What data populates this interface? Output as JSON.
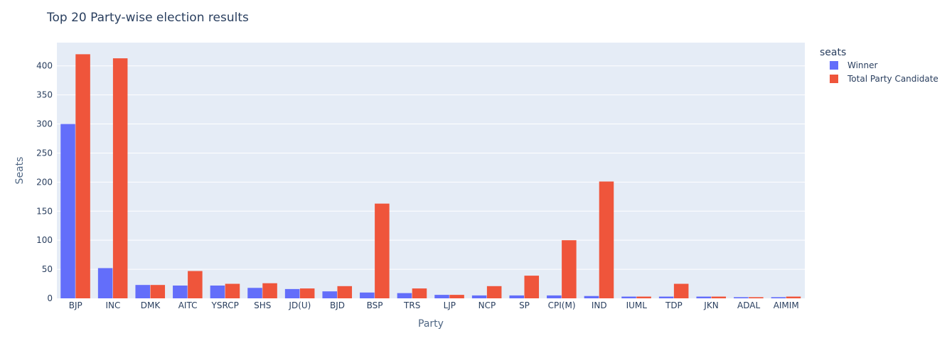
{
  "chart_data": {
    "type": "bar",
    "title": "Top 20 Party-wise election results",
    "xlabel": "Party",
    "ylabel": "Seats",
    "ylim": [
      0,
      440
    ],
    "yticks": [
      0,
      50,
      100,
      150,
      200,
      250,
      300,
      350,
      400
    ],
    "grid": true,
    "legend_title": "seats",
    "legend_position": "top-right",
    "categories": [
      "BJP",
      "INC",
      "DMK",
      "AITC",
      "YSRCP",
      "SHS",
      "JD(U)",
      "BJD",
      "BSP",
      "TRS",
      "LJP",
      "NCP",
      "SP",
      "CPI(M)",
      "IND",
      "IUML",
      "TDP",
      "JKN",
      "ADAL",
      "AIMIM"
    ],
    "series": [
      {
        "name": "Winner",
        "color": "#636efa",
        "values": [
          300,
          52,
          23,
          22,
          22,
          18,
          16,
          12,
          10,
          9,
          6,
          5,
          5,
          5,
          4,
          3,
          3,
          3,
          2,
          2
        ]
      },
      {
        "name": "Total Party Candidate",
        "color": "#ef553b",
        "values": [
          420,
          413,
          23,
          47,
          25,
          26,
          17,
          21,
          163,
          17,
          6,
          21,
          39,
          100,
          201,
          3,
          25,
          3,
          2,
          3
        ]
      }
    ]
  }
}
